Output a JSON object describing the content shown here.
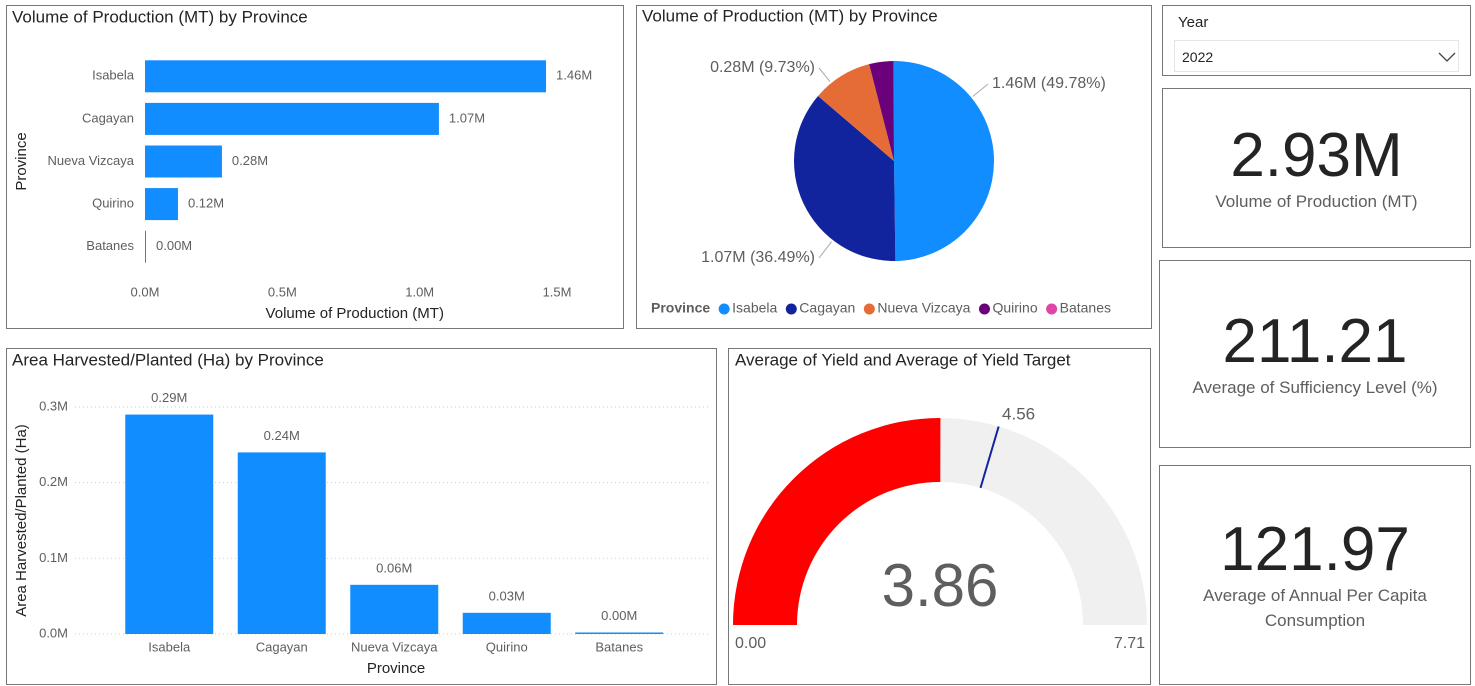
{
  "chart_data": [
    {
      "type": "bar",
      "orientation": "horizontal",
      "title": "Volume of Production (MT) by Province",
      "x_label": "Volume of Production (MT)",
      "y_label": "Province",
      "categories": [
        "Isabela",
        "Cagayan",
        "Nueva Vizcaya",
        "Quirino",
        "Batanes"
      ],
      "values": [
        1460000,
        1070000,
        280000,
        120000,
        2000
      ],
      "value_labels": [
        "1.46M",
        "1.07M",
        "0.28M",
        "0.12M",
        "0.00M"
      ],
      "color": "#118DFF",
      "xlim": [
        0,
        1600000
      ],
      "xticks": [
        {
          "value": 0,
          "label": "0.0M"
        },
        {
          "value": 500000,
          "label": "0.5M"
        },
        {
          "value": 1000000,
          "label": "1.0M"
        },
        {
          "value": 1500000,
          "label": "1.5M"
        }
      ],
      "grid": false
    },
    {
      "type": "pie",
      "title": "Volume of Production (MT) by Province",
      "legend_title": "Province",
      "categories": [
        "Isabela",
        "Cagayan",
        "Nueva Vizcaya",
        "Quirino",
        "Batanes"
      ],
      "values": [
        49.78,
        36.49,
        9.73,
        3.95,
        0.05
      ],
      "value_labels": [
        "1.46M (49.78%)",
        "1.07M (36.49%)",
        "0.28M (9.73%)",
        null,
        null
      ],
      "colors": [
        "#118DFF",
        "#12239E",
        "#E66C37",
        "#6B007B",
        "#E044A7"
      ],
      "legend": "bottom-left"
    },
    {
      "type": "bar",
      "orientation": "vertical",
      "title": "Area Harvested/Planted (Ha) by Province",
      "x_label": "Province",
      "y_label": "Area Harvested/Planted (Ha)",
      "categories": [
        "Isabela",
        "Cagayan",
        "Nueva Vizcaya",
        "Quirino",
        "Batanes"
      ],
      "values": [
        290000,
        240000,
        65000,
        28000,
        2000
      ],
      "value_labels": [
        "0.29M",
        "0.24M",
        "0.06M",
        "0.03M",
        "0.00M"
      ],
      "color": "#118DFF",
      "ylim": [
        0,
        300000
      ],
      "yticks": [
        {
          "value": 0,
          "label": "0.0M"
        },
        {
          "value": 100000,
          "label": "0.1M"
        },
        {
          "value": 200000,
          "label": "0.2M"
        },
        {
          "value": 300000,
          "label": "0.3M"
        }
      ],
      "grid": true
    },
    {
      "type": "gauge",
      "title": "Average of Yield and Average of Yield Target",
      "value": 3.86,
      "target": 4.56,
      "ylim": [
        0,
        7.71
      ],
      "yticks": [
        {
          "value": 0,
          "label": "0.00"
        },
        7.71
      ],
      "color": "#FF0000",
      "track_color": "#F0F0F0",
      "target_color": "#12239E"
    }
  ],
  "slicer": {
    "title": "Year",
    "selected": "2022"
  },
  "cards": [
    {
      "value": "2.93M",
      "label": "Volume of Production (MT)"
    },
    {
      "value": "211.21",
      "label": "Average of Sufficiency Level (%)"
    },
    {
      "value": "121.97",
      "label": "Average of Annual Per Capita Consumption"
    }
  ]
}
